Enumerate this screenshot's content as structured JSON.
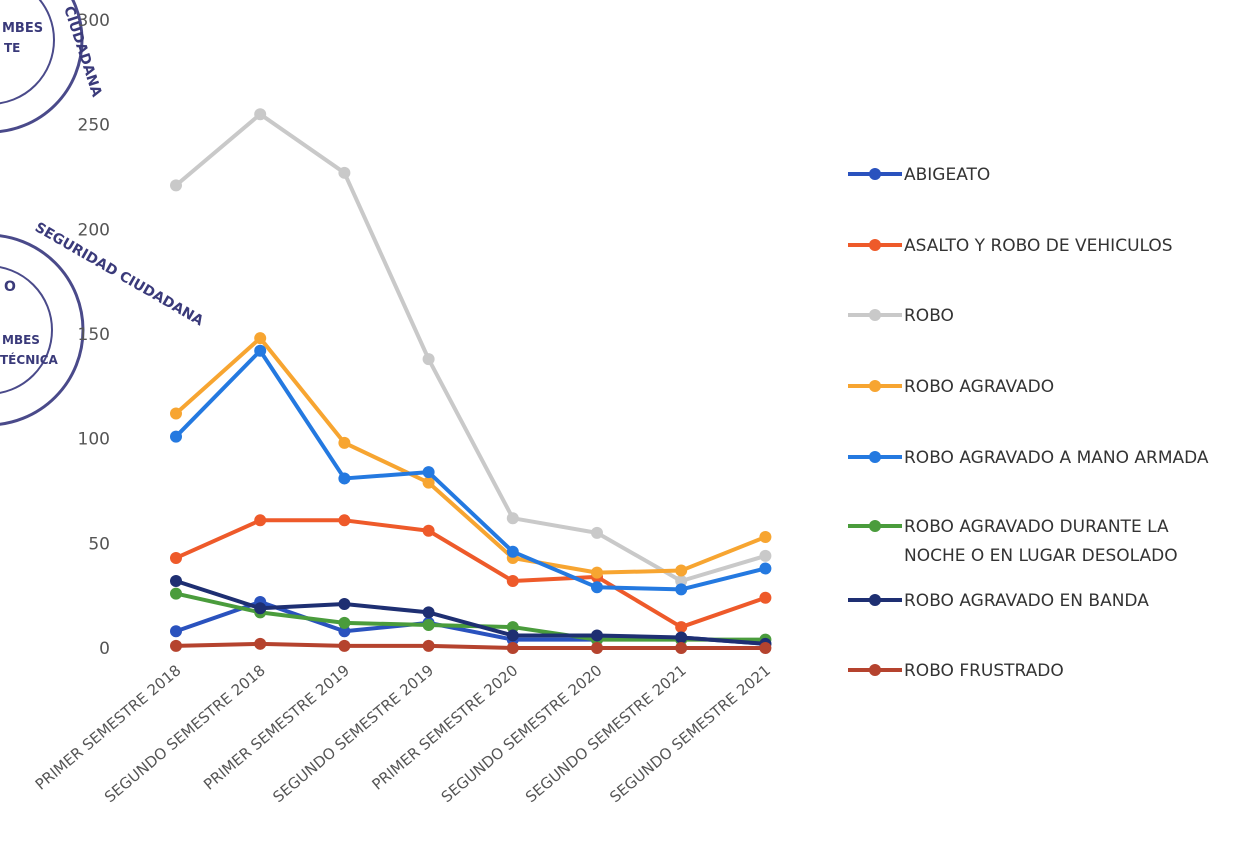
{
  "stamps": [
    {
      "lines": [
        "MBES",
        "TE"
      ],
      "rim_text": "CIUDADANA"
    },
    {
      "lines": [
        "O",
        "MBES",
        "TÉCNICA"
      ],
      "rim_text": "SEGURIDAD CIUDADANA"
    }
  ],
  "chart_data": {
    "type": "line",
    "title": "",
    "xlabel": "",
    "ylabel": "",
    "ylim": [
      0,
      300
    ],
    "yticks": [
      0,
      50,
      100,
      150,
      200,
      250,
      300
    ],
    "ytick_labels": [
      "0",
      "50",
      "100",
      "150",
      "200",
      "250",
      "300"
    ],
    "grid": false,
    "legend_position": "right",
    "categories": [
      "PRIMER SEMESTRE 2018",
      "SEGUNDO SEMESTRE 2018",
      "PRIMER SEMESTRE 2019",
      "SEGUNDO SEMESTRE 2019",
      "PRIMER SEMESTRE 2020",
      "SEGUNDO SEMESTRE 2020",
      "SEGUNDO SEMESTRE 2021",
      "SEGUNDO SEMESTRE 2021"
    ],
    "series": [
      {
        "name": "ABIGEATO",
        "color": "#2a52be",
        "values": [
          8,
          22,
          8,
          12,
          4,
          4,
          5,
          2
        ]
      },
      {
        "name": "ASALTO Y ROBO DE VEHICULOS",
        "color": "#ee5a2a",
        "values": [
          43,
          61,
          61,
          56,
          32,
          34,
          10,
          24
        ]
      },
      {
        "name": "ROBO",
        "color": "#c9c9c9",
        "values": [
          221,
          255,
          227,
          138,
          62,
          55,
          32,
          44
        ]
      },
      {
        "name": "ROBO AGRAVADO",
        "color": "#f7a531",
        "values": [
          112,
          148,
          98,
          79,
          43,
          36,
          37,
          53
        ]
      },
      {
        "name": "ROBO AGRAVADO A MANO ARMADA",
        "color": "#2479e0",
        "values": [
          101,
          142,
          81,
          84,
          46,
          29,
          28,
          38
        ]
      },
      {
        "name": "ROBO AGRAVADO DURANTE LA NOCHE O EN LUGAR DESOLADO",
        "color": "#4a9c3c",
        "values": [
          26,
          17,
          12,
          11,
          10,
          4,
          4,
          4
        ]
      },
      {
        "name": "ROBO AGRAVADO EN BANDA",
        "color": "#1e2f72",
        "values": [
          32,
          19,
          21,
          17,
          6,
          6,
          5,
          2
        ]
      },
      {
        "name": "ROBO FRUSTRADO",
        "color": "#b5432e",
        "values": [
          1,
          2,
          1,
          1,
          0,
          0,
          0,
          0
        ]
      }
    ],
    "legend_lines": [
      [
        "ABIGEATO"
      ],
      [
        "ASALTO Y ROBO DE VEHICULOS"
      ],
      [
        "ROBO"
      ],
      [
        "ROBO AGRAVADO"
      ],
      [
        "ROBO AGRAVADO A MANO ARMADA"
      ],
      [
        "ROBO AGRAVADO DURANTE LA",
        "NOCHE O EN LUGAR DESOLADO"
      ],
      [
        "ROBO AGRAVADO EN BANDA"
      ],
      [
        "ROBO FRUSTRADO"
      ]
    ]
  }
}
